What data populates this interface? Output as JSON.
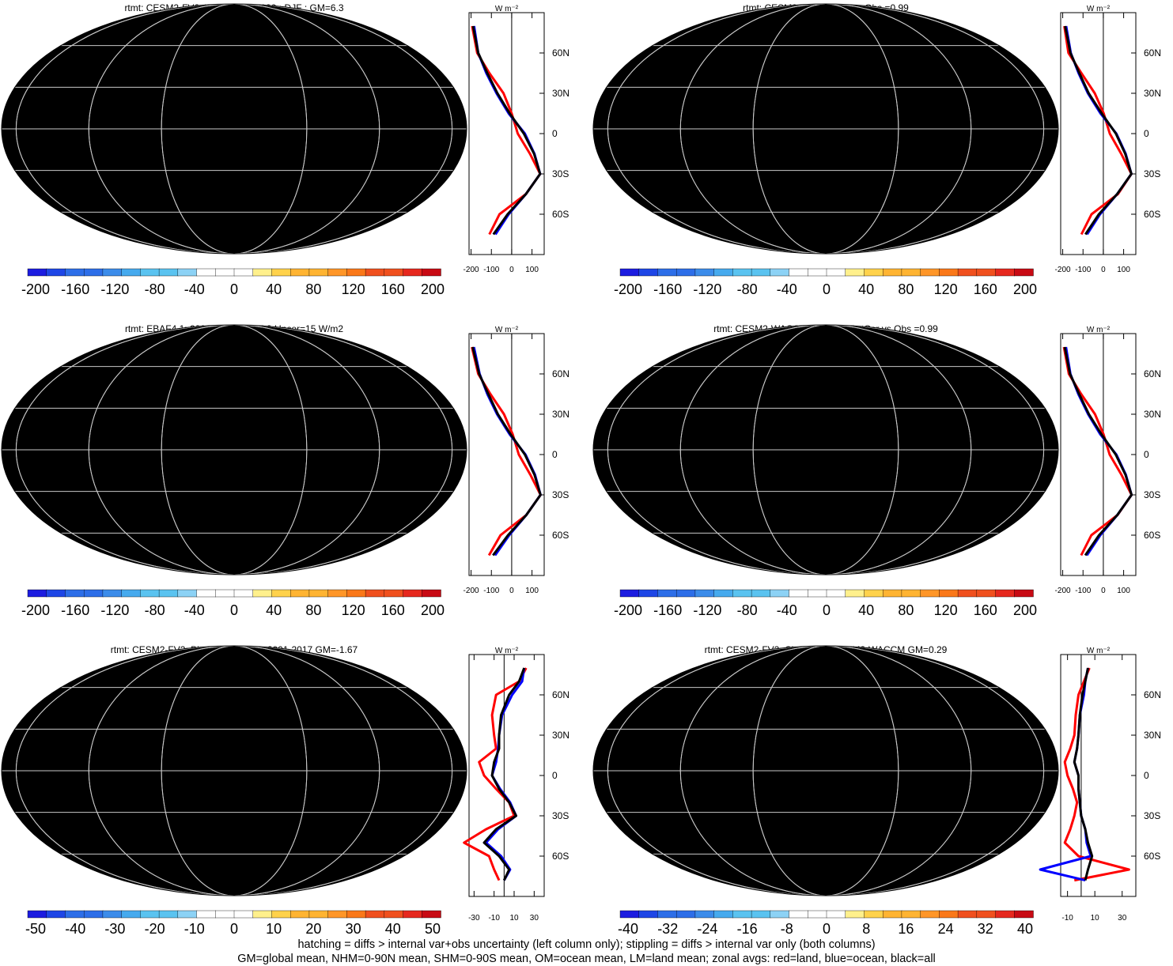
{
  "panels": [
    {
      "id": "p1",
      "title": "rtmt: CESM2-FV2: Years 1980-1999 : DJF : GM=6.3",
      "kind": "abs",
      "hatch": true
    },
    {
      "id": "p2",
      "title": "rtmt: CESM2-FV2 PatCor vs Obs =0.99",
      "kind": "abs",
      "hatch": false
    },
    {
      "id": "p3",
      "title": "rtmt: EBAF4.1: 2001-2017 GM=7.9 Uncer=15 W/m2",
      "kind": "abs",
      "hatch": true
    },
    {
      "id": "p4",
      "title": "rtmt: CESM2-WACCM: GM=6.0 PatCor vs Obs =0.99",
      "kind": "abs",
      "hatch": false
    },
    {
      "id": "p5",
      "title": "rtmt: CESM2-FV2: Bias vs EBAF4.1: 2001-2017 GM=-1.67",
      "kind": "diff",
      "hatch": true
    },
    {
      "id": "p6",
      "title": "rtmt: CESM2-FV2: Change vs CESM2-WACCM GM=0.29",
      "kind": "diff",
      "hatch": false
    }
  ],
  "colorbars": {
    "abs": {
      "labels": [
        "-200",
        "-160",
        "-120",
        "-80",
        "-40",
        "0",
        "40",
        "80",
        "120",
        "160",
        "200"
      ]
    },
    "bias": {
      "labels": [
        "-50",
        "-40",
        "-30",
        "-20",
        "-10",
        "0",
        "10",
        "20",
        "30",
        "40",
        "50"
      ]
    },
    "change": {
      "labels": [
        "-40",
        "-32",
        "-24",
        "-16",
        "-8",
        "0",
        "8",
        "16",
        "24",
        "32",
        "40"
      ]
    }
  },
  "zonal": {
    "units": "W m⁻²",
    "lat_labels": [
      "60N",
      "30N",
      "0",
      "30S",
      "60S"
    ],
    "abs_x_labels": [
      "-200",
      "-100",
      "0",
      "100"
    ],
    "bias_x_labels": [
      "-30",
      "-10",
      "10",
      "30"
    ],
    "change_x_labels": [
      "-10",
      "10",
      "30"
    ]
  },
  "colors": {
    "palette": [
      "#1c1ce0",
      "#1e46e6",
      "#2d6ee8",
      "#3c8cea",
      "#46aaee",
      "#5ac3f0",
      "#8cd2f5",
      "#ffffff",
      "#ffffff",
      "#fff08c",
      "#ffd24b",
      "#ffb432",
      "#ff9628",
      "#fa7819",
      "#f0501e",
      "#e6281e",
      "#c80a14"
    ],
    "land": "#ff0000",
    "ocean": "#0000ff",
    "all": "#000000"
  },
  "footer": {
    "line1": "hatching = diffs > internal var+obs uncertainty (left column only); stippling = diffs > internal var only (both columns)",
    "line2": "GM=global mean, NHM=0-90N mean, SHM=0-90S mean, OM=ocean mean, LM=land mean; zonal avgs: red=land, blue=ocean, black=all"
  },
  "chart_data": [
    {
      "type": "heatmap",
      "title": "rtmt: CESM2-FV2: Years 1980-1999 : DJF : GM=6.3",
      "colorbar": [
        -200,
        200
      ],
      "zonal_mean": {
        "lat": [
          80,
          60,
          45,
          30,
          15,
          0,
          -15,
          -30,
          -45,
          -60,
          -75
        ],
        "all": [
          -190,
          -165,
          -120,
          -70,
          -10,
          60,
          110,
          140,
          70,
          -20,
          -90
        ],
        "land": [
          -195,
          -170,
          -110,
          -40,
          0,
          30,
          90,
          140,
          70,
          -60,
          -110
        ],
        "ocean": [
          -185,
          -165,
          -125,
          -75,
          -15,
          65,
          112,
          140,
          70,
          -15,
          -80
        ]
      }
    },
    {
      "type": "heatmap",
      "title": "rtmt: CESM2-FV2 PatCor vs Obs =0.99",
      "colorbar": [
        -200,
        200
      ],
      "zonal_mean": {
        "lat": [
          80,
          60,
          45,
          30,
          15,
          0,
          -15,
          -30,
          -45,
          -60,
          -75
        ],
        "all": [
          -188,
          -162,
          -118,
          -72,
          -8,
          62,
          108,
          138,
          68,
          -22,
          -88
        ],
        "land": [
          -192,
          -172,
          -108,
          -42,
          2,
          32,
          88,
          138,
          72,
          -58,
          -108
        ],
        "ocean": [
          -183,
          -160,
          -122,
          -76,
          -14,
          64,
          110,
          138,
          68,
          -16,
          -80
        ]
      }
    },
    {
      "type": "heatmap",
      "title": "rtmt: EBAF4.1: 2001-2017 GM=7.9 Uncer=15 W/m2",
      "colorbar": [
        -200,
        200
      ],
      "zonal_mean": {
        "lat": [
          80,
          60,
          45,
          30,
          15,
          0,
          -15,
          -30,
          -45,
          -60,
          -75
        ],
        "all": [
          -192,
          -160,
          -115,
          -68,
          -5,
          65,
          112,
          142,
          72,
          -18,
          -92
        ],
        "land": [
          -196,
          -165,
          -105,
          -38,
          5,
          35,
          92,
          142,
          72,
          -55,
          -112
        ],
        "ocean": [
          -186,
          -158,
          -120,
          -72,
          -10,
          68,
          115,
          142,
          72,
          -12,
          -82
        ]
      }
    },
    {
      "type": "heatmap",
      "title": "rtmt: CESM2-WACCM: GM=6.0 PatCor vs Obs =0.99",
      "colorbar": [
        -200,
        200
      ],
      "zonal_mean": {
        "lat": [
          80,
          60,
          45,
          30,
          15,
          0,
          -15,
          -30,
          -45,
          -60,
          -75
        ],
        "all": [
          -190,
          -164,
          -119,
          -71,
          -9,
          61,
          109,
          139,
          69,
          -21,
          -89
        ],
        "land": [
          -194,
          -170,
          -109,
          -41,
          1,
          31,
          89,
          139,
          70,
          -59,
          -109
        ],
        "ocean": [
          -184,
          -162,
          -123,
          -75,
          -15,
          64,
          111,
          139,
          69,
          -15,
          -81
        ]
      }
    },
    {
      "type": "heatmap",
      "title": "rtmt: CESM2-FV2: Bias vs EBAF4.1: 2001-2017 GM=-1.67",
      "colorbar": [
        -50,
        50
      ],
      "zonal_mean": {
        "lat": [
          80,
          70,
          60,
          45,
          30,
          20,
          10,
          0,
          -10,
          -20,
          -30,
          -40,
          -50,
          -60,
          -70,
          -78
        ],
        "all": [
          20,
          15,
          5,
          -3,
          -5,
          -5,
          -10,
          -12,
          -5,
          5,
          12,
          -8,
          -20,
          -5,
          5,
          0
        ],
        "land": [
          22,
          15,
          -8,
          -12,
          -10,
          -8,
          -25,
          -20,
          -8,
          5,
          10,
          -18,
          -40,
          -15,
          -10,
          -5
        ],
        "ocean": [
          20,
          18,
          8,
          -2,
          -5,
          -6,
          -8,
          -12,
          -4,
          6,
          12,
          -6,
          -18,
          -3,
          6,
          0
        ]
      }
    },
    {
      "type": "heatmap",
      "title": "rtmt: CESM2-FV2: Change vs CESM2-WACCM GM=0.29",
      "colorbar": [
        -40,
        40
      ],
      "zonal_mean": {
        "lat": [
          80,
          70,
          60,
          45,
          30,
          20,
          10,
          0,
          -10,
          -20,
          -30,
          -40,
          -50,
          -60,
          -70,
          -78
        ],
        "all": [
          5,
          3,
          1,
          -1,
          -2,
          -3,
          -5,
          -2,
          -2,
          -1,
          0,
          3,
          5,
          8,
          5,
          3
        ],
        "land": [
          6,
          2,
          -2,
          -4,
          -5,
          -8,
          -12,
          -10,
          -6,
          -3,
          -5,
          -8,
          -12,
          -2,
          35,
          -5
        ],
        "ocean": [
          5,
          3,
          2,
          -1,
          -2,
          -3,
          -5,
          -2,
          -2,
          -1,
          0,
          3,
          4,
          7,
          -30,
          3
        ]
      }
    }
  ]
}
